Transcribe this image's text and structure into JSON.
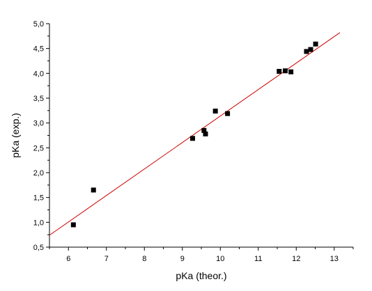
{
  "chart_data": {
    "type": "scatter",
    "xlabel": "pKa (theor.)",
    "ylabel": "pKa (exp.)",
    "xlim": [
      5.5,
      13.5
    ],
    "ylim": [
      0.5,
      5.0
    ],
    "x_ticks": [
      6,
      7,
      8,
      9,
      10,
      11,
      12,
      13
    ],
    "x_tick_labels": [
      "6",
      "7",
      "8",
      "9",
      "10",
      "11",
      "12",
      "13"
    ],
    "y_ticks": [
      0.5,
      1.0,
      1.5,
      2.0,
      2.5,
      3.0,
      3.5,
      4.0,
      4.5,
      5.0
    ],
    "y_tick_labels": [
      "0,5",
      "1,0",
      "1,5",
      "2,0",
      "2,5",
      "3,0",
      "3,5",
      "4,0",
      "4,5",
      "5,0"
    ],
    "grid": false,
    "legend": "none",
    "series": [
      {
        "marker": "square",
        "color": "#000000",
        "points": [
          {
            "x": 6.13,
            "y": 0.95
          },
          {
            "x": 6.66,
            "y": 1.65
          },
          {
            "x": 9.27,
            "y": 2.69
          },
          {
            "x": 9.57,
            "y": 2.85
          },
          {
            "x": 9.61,
            "y": 2.78
          },
          {
            "x": 9.87,
            "y": 3.24
          },
          {
            "x": 10.19,
            "y": 3.19
          },
          {
            "x": 11.55,
            "y": 4.04
          },
          {
            "x": 11.71,
            "y": 4.05
          },
          {
            "x": 11.86,
            "y": 4.03
          },
          {
            "x": 12.27,
            "y": 4.44
          },
          {
            "x": 12.38,
            "y": 4.48
          },
          {
            "x": 12.51,
            "y": 4.59
          }
        ]
      }
    ],
    "fit_line": {
      "color": "#cc0000",
      "from": {
        "x": 5.5,
        "y": 0.74
      },
      "to": {
        "x": 13.15,
        "y": 4.82
      }
    }
  }
}
